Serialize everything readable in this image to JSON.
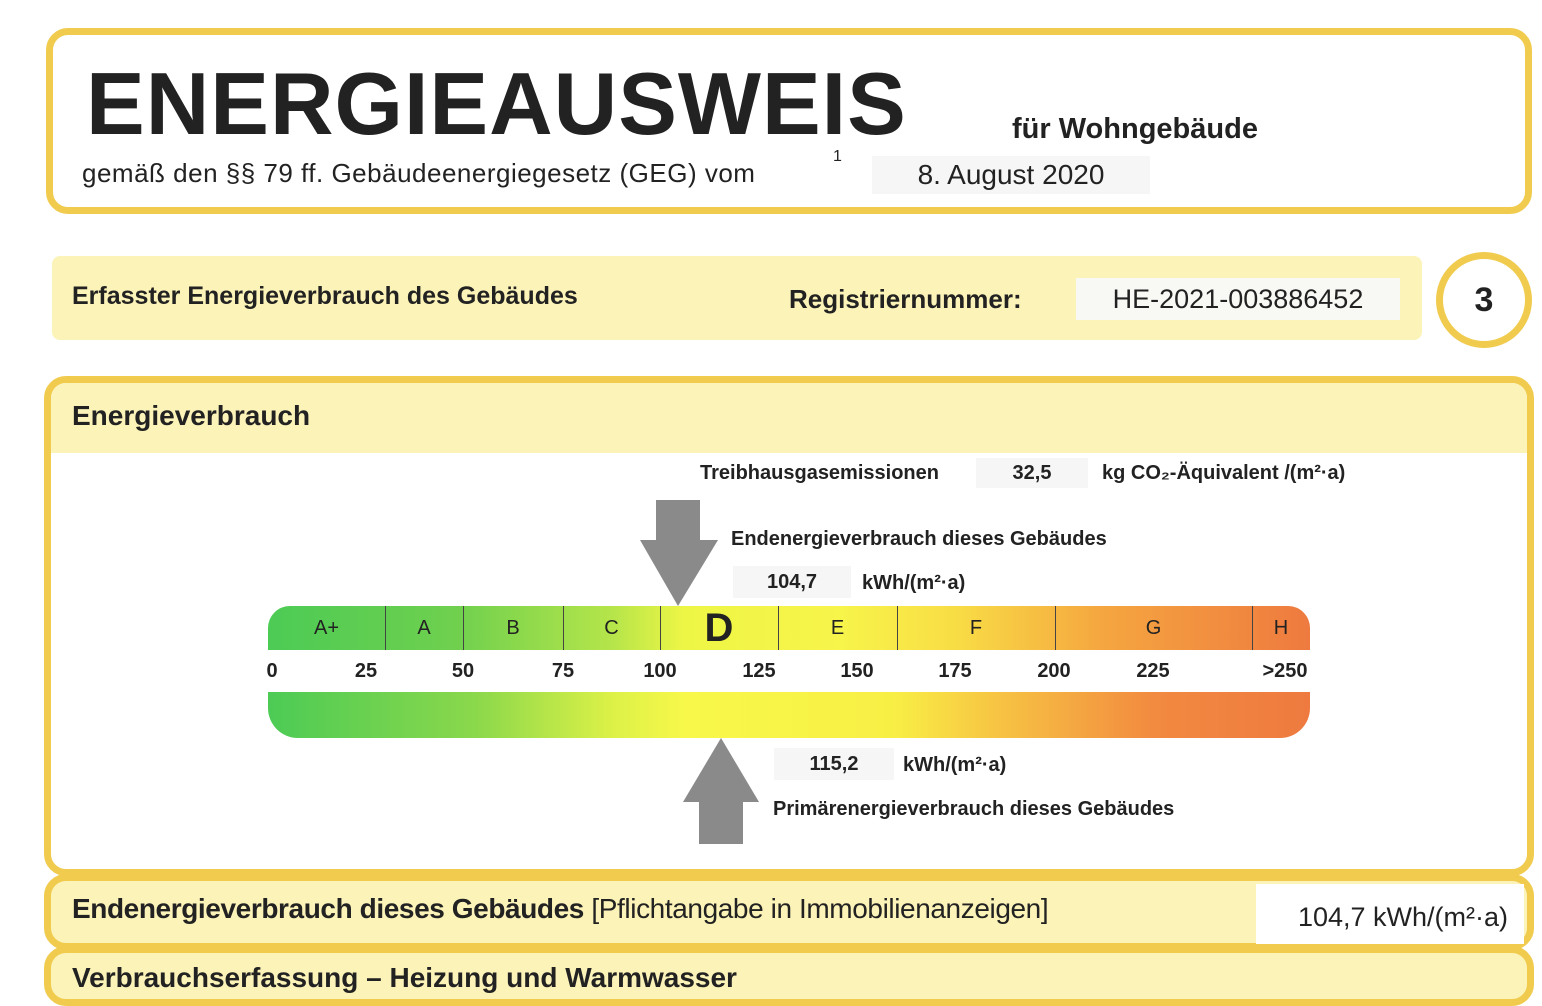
{
  "header": {
    "title": "ENERGIEAUSWEIS",
    "subtitle": "für Wohngebäude",
    "law": "gemäß den §§ 79 ff. Gebäudeenergiegesetz (GEG) vom",
    "footnote": "1",
    "date": "8. August 2020"
  },
  "band": {
    "label": "Erfasster Energieverbrauch des Gebäudes",
    "reg_label": "Registriernummer:",
    "reg_value": "HE-2021-003886452",
    "page": "3"
  },
  "section": {
    "title": "Energieverbrauch",
    "ghg_label": "Treibhausgasemissionen",
    "ghg_value": "32,5",
    "ghg_unit": "kg CO₂-Äquivalent /(m²·a)",
    "final_label": "Endenergieverbrauch dieses Gebäudes",
    "final_value": "104,7",
    "final_unit": "kWh/(m²·a)",
    "primary_value": "115,2",
    "primary_unit": "kWh/(m²·a)",
    "primary_label": "Primärenergieverbrauch dieses Gebäudes",
    "final_numeric": 104.7,
    "primary_numeric": 115.2,
    "active_class": "D",
    "classes": [
      "A+",
      "A",
      "B",
      "C",
      "D",
      "E",
      "F",
      "G",
      "H"
    ],
    "ticks": [
      "0",
      "25",
      "50",
      "75",
      "100",
      "125",
      "150",
      "175",
      "200",
      "225",
      ">250"
    ]
  },
  "footer": {
    "label_bold": "Endenergieverbrauch dieses Gebäudes",
    "label_note": "[Pflichtangabe in Immobilienanzeigen]",
    "value": "104,7 kWh/(m²·a)"
  },
  "next_section": {
    "title": "Verbrauchserfassung – Heizung und Warmwasser"
  }
}
